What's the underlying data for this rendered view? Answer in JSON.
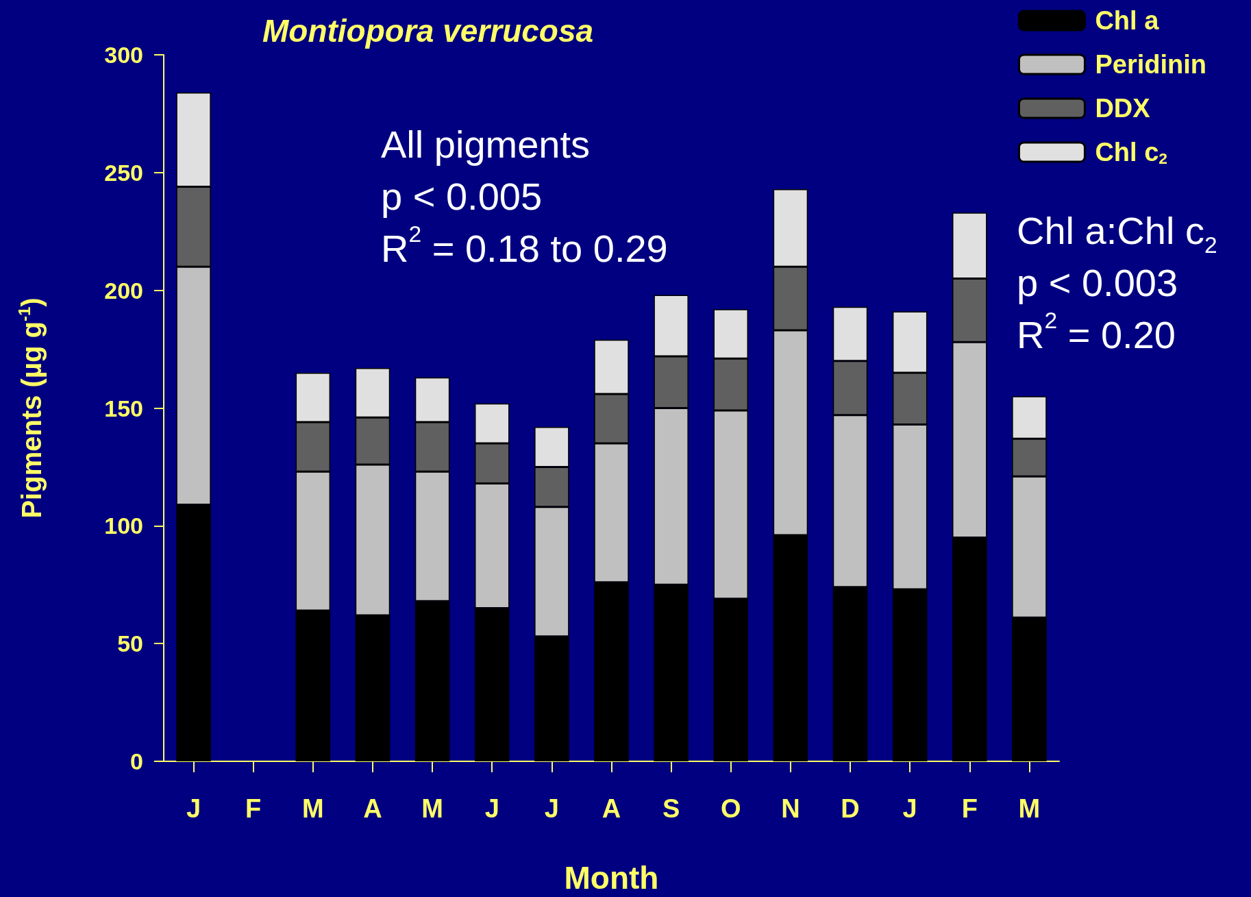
{
  "chart_data": {
    "type": "bar",
    "stacked": true,
    "title": "Montiopora verrucosa",
    "xlabel": "Month",
    "ylabel": "Pigments (µg g$^{-1}$)",
    "categories": [
      "J",
      "F",
      "M",
      "A",
      "M",
      "J",
      "J",
      "A",
      "S",
      "O",
      "N",
      "D",
      "J",
      "F",
      "M"
    ],
    "series": [
      {
        "name": "Chl a",
        "color": "#000000",
        "values": [
          109,
          null,
          64,
          62,
          68,
          65,
          53,
          76,
          75,
          69,
          96,
          74,
          73,
          95,
          61
        ]
      },
      {
        "name": "Peridinin",
        "color": "#c0c0c0",
        "values": [
          101,
          null,
          59,
          64,
          55,
          53,
          55,
          59,
          75,
          80,
          87,
          73,
          70,
          83,
          60
        ]
      },
      {
        "name": "DDX",
        "color": "#606060",
        "values": [
          34,
          null,
          21,
          20,
          21,
          17,
          17,
          21,
          22,
          22,
          27,
          23,
          22,
          27,
          16
        ]
      },
      {
        "name": "Chl c$_{2}$",
        "color": "#e0e0e0",
        "values": [
          40,
          null,
          21,
          21,
          19,
          17,
          17,
          23,
          26,
          21,
          33,
          23,
          26,
          28,
          18
        ]
      }
    ],
    "ylim": [
      0,
      300
    ],
    "yticks": [
      0,
      50,
      100,
      150,
      200,
      250,
      300
    ],
    "grid": false,
    "legend": "top right",
    "annotations": [
      "All pigments\np < 0.005\nR$^{2}$ = 0.18 to 0.29",
      "Chl a:Chl c$_{2}$\np < 0.003\nR$^{2}$ = 0.20"
    ]
  }
}
